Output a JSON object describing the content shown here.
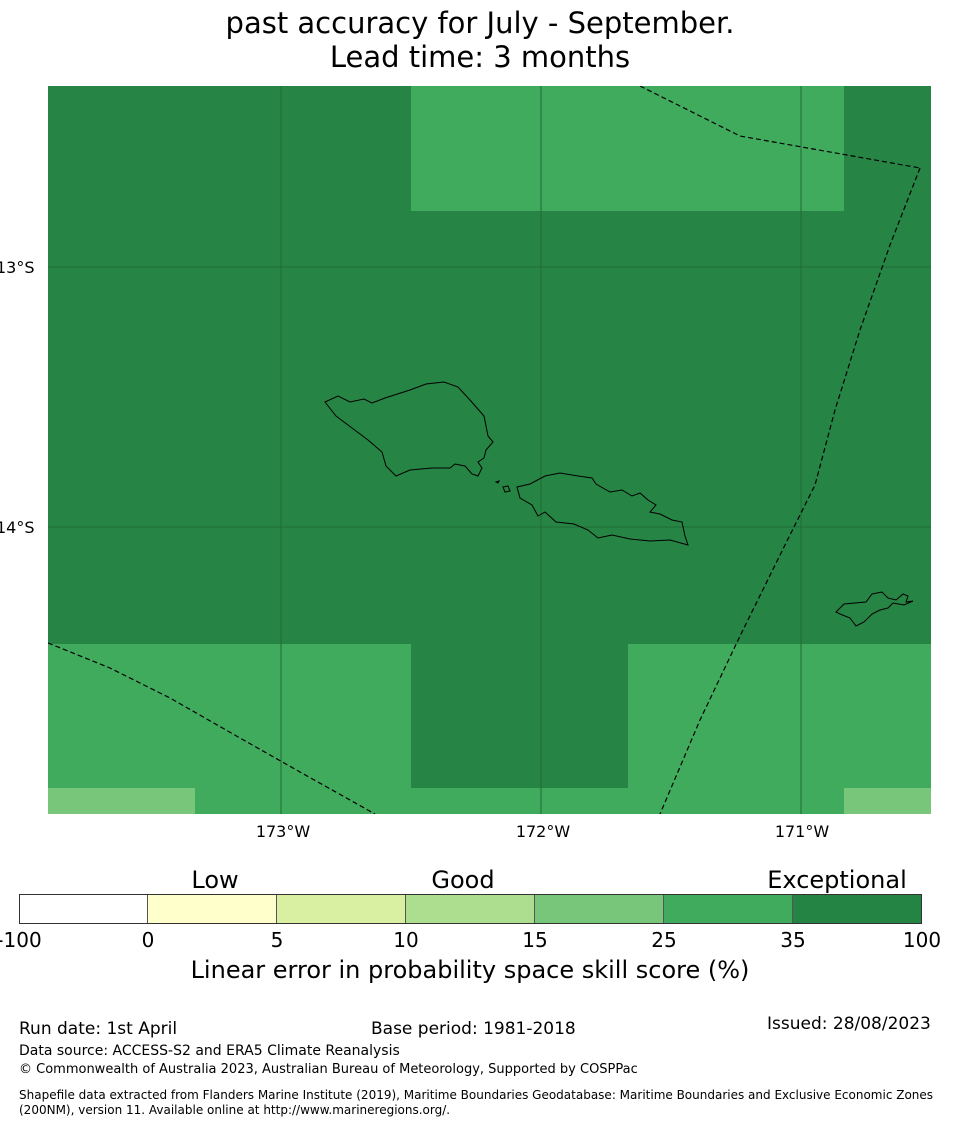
{
  "title": {
    "line1": "past accuracy for July - September.",
    "line2": "Lead time: 3 months"
  },
  "map": {
    "lat_labels": [
      "13°S",
      "14°S"
    ],
    "lon_labels": [
      "173°W",
      "172°W",
      "171°W"
    ],
    "colors": {
      "ocean_dark": "#268444",
      "ocean_mid": "#41ab5d",
      "ocean_light": "#78c679",
      "gridline": "#1f6b36",
      "coastline": "#000000",
      "eez_boundary": "#000000"
    },
    "skill_categories": {
      "background": "35 to 100",
      "top_block": "25 to 35",
      "bottom_band": "25 to 35",
      "bottom_center_block": "35 to 100",
      "corner_blocks": "15 to 25"
    }
  },
  "colorbar": {
    "categories": [
      "Low",
      "Good",
      "Exceptional"
    ],
    "ticks": [
      "-100",
      "0",
      "5",
      "10",
      "15",
      "25",
      "35",
      "100"
    ],
    "colors": [
      "#ffffff",
      "#ffffcc",
      "#d9f0a3",
      "#addd8e",
      "#78c679",
      "#41ab5d",
      "#238443"
    ],
    "label": "Linear error in probability space skill score (%)"
  },
  "footer": {
    "run_date": "Run date: 1st April",
    "base_period": "Base period: 1981-2018",
    "issued": "Issued: 28/08/2023",
    "data_source": "Data source: ACCESS-S2 and ERA5 Climate Reanalysis",
    "copyright": "© Commonwealth of Australia 2023, Australian Bureau of Meteorology, Supported by COSPPac",
    "shapefile_line1": "Shapefile data extracted from Flanders Marine Institute (2019), Maritime Boundaries Geodatabase: Maritime Boundaries and Exclusive Economic Zones",
    "shapefile_line2": "(200NM), version 11. Available online at http://www.marineregions.org/."
  }
}
